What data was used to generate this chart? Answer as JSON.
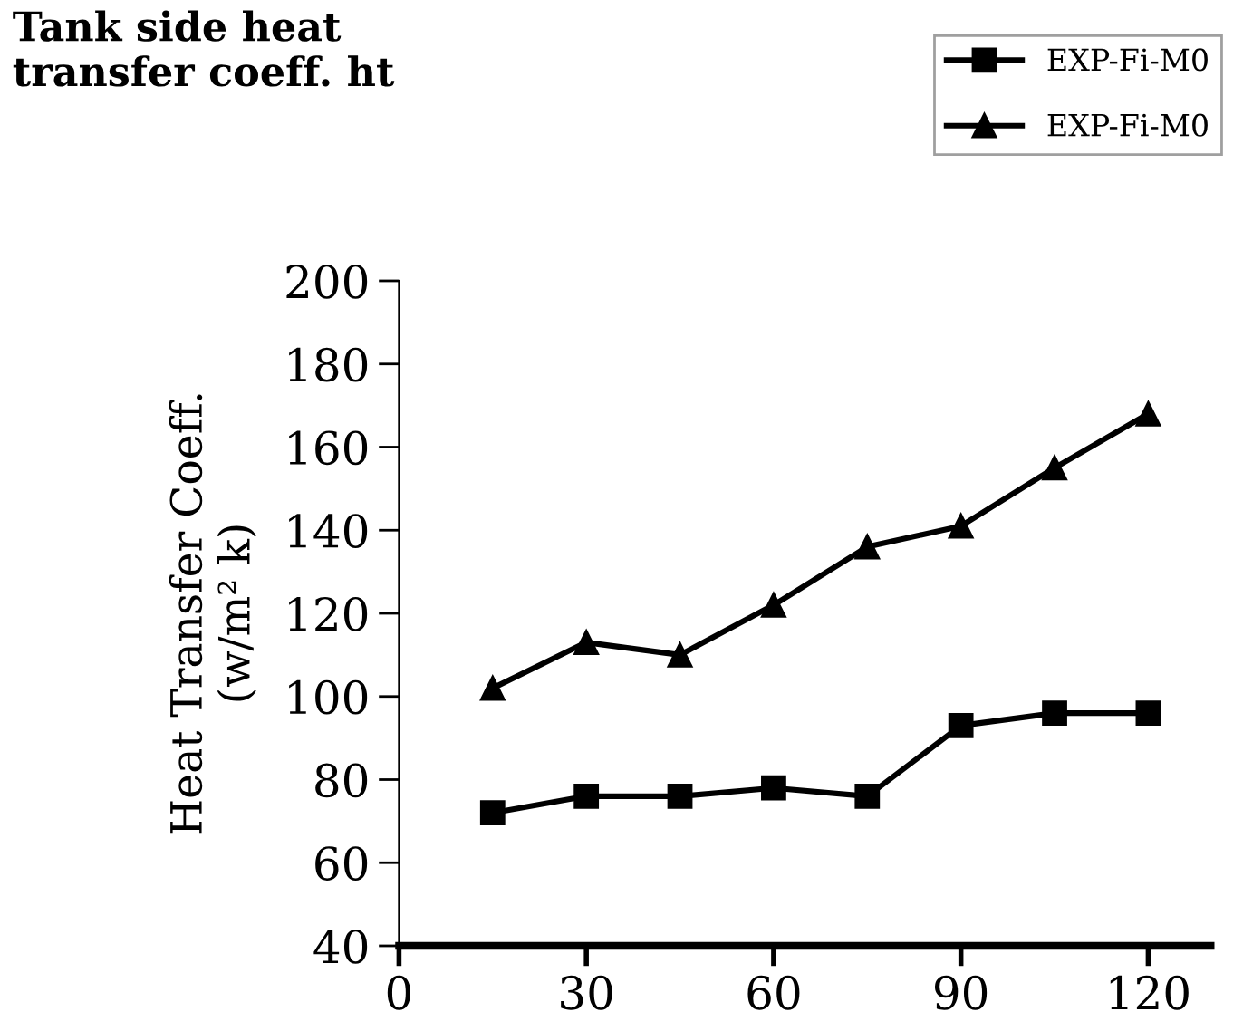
{
  "chart_data": {
    "type": "line",
    "title": "Tank side heat\ntransfer coeff. ht",
    "ylabel": "Heat Transfer Coeff.\n(w/m² k)",
    "x": [
      15,
      30,
      45,
      60,
      75,
      90,
      105,
      120
    ],
    "series": [
      {
        "name": "EXP-Fi-M0",
        "color": "#000000",
        "marker": "square",
        "values": [
          72,
          76,
          76,
          78,
          76,
          93,
          96,
          96
        ]
      },
      {
        "name": "EXP-Fi-M0",
        "color": "#000000",
        "marker": "triangle",
        "values": [
          102,
          113,
          110,
          122,
          136,
          141,
          155,
          168
        ]
      }
    ],
    "xlim": [
      0,
      130
    ],
    "xticks": [
      0,
      30,
      60,
      90,
      120
    ],
    "ylim": [
      40,
      200
    ],
    "yticks": [
      40,
      60,
      80,
      100,
      120,
      140,
      160,
      180,
      200
    ],
    "grid": false,
    "legend": "top right",
    "line_style": "solid"
  }
}
